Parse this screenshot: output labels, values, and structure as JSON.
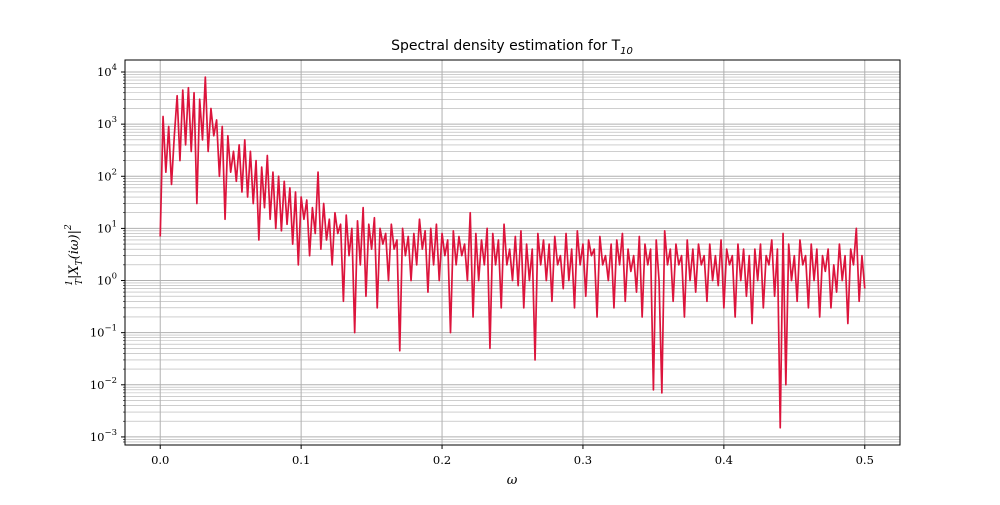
{
  "chart_data": {
    "type": "line",
    "title": "Spectral density estimation for T",
    "title_subscript": "10",
    "xlabel": "ω",
    "ylabel": "(1/T)|X_T(iω)|²",
    "ylabel_parts": {
      "num": "1",
      "den": "T",
      "body": "|X",
      "sub": "T",
      "arg": "(iω)|",
      "sup": "2"
    },
    "xscale": "linear",
    "yscale": "log",
    "xlim": [
      -0.025,
      0.525
    ],
    "ylim": [
      0.0007,
      17000
    ],
    "grid": "major and minor",
    "x_ticks": [
      {
        "value": 0.0,
        "label": "0.0"
      },
      {
        "value": 0.1,
        "label": "0.1"
      },
      {
        "value": 0.2,
        "label": "0.2"
      },
      {
        "value": 0.3,
        "label": "0.3"
      },
      {
        "value": 0.4,
        "label": "0.4"
      },
      {
        "value": 0.5,
        "label": "0.5"
      }
    ],
    "y_ticks": [
      {
        "value": 0.001,
        "base": "10",
        "exp": "−3"
      },
      {
        "value": 0.01,
        "base": "10",
        "exp": "−2"
      },
      {
        "value": 0.1,
        "base": "10",
        "exp": "−1"
      },
      {
        "value": 1,
        "base": "10",
        "exp": "0"
      },
      {
        "value": 10,
        "base": "10",
        "exp": "1"
      },
      {
        "value": 100,
        "base": "10",
        "exp": "2"
      },
      {
        "value": 1000,
        "base": "10",
        "exp": "3"
      },
      {
        "value": 10000,
        "base": "10",
        "exp": "4"
      }
    ],
    "colors": {
      "line": "#dc143c",
      "grid": "#b0b0b0",
      "axes": "#000000"
    },
    "series": [
      {
        "x": [
          0.0,
          0.002,
          0.004,
          0.006,
          0.008,
          0.01,
          0.012,
          0.014,
          0.016,
          0.018,
          0.02,
          0.022,
          0.024,
          0.026,
          0.028,
          0.03,
          0.032,
          0.034,
          0.036,
          0.038,
          0.04,
          0.042,
          0.044,
          0.046,
          0.048,
          0.05,
          0.052,
          0.054,
          0.056,
          0.058,
          0.06,
          0.062,
          0.064,
          0.066,
          0.068,
          0.07,
          0.072,
          0.074,
          0.076,
          0.078,
          0.08,
          0.082,
          0.084,
          0.086,
          0.088,
          0.09,
          0.092,
          0.094,
          0.096,
          0.098,
          0.1,
          0.102,
          0.104,
          0.106,
          0.108,
          0.11,
          0.112,
          0.114,
          0.116,
          0.118,
          0.12,
          0.122,
          0.124,
          0.126,
          0.128,
          0.13,
          0.132,
          0.134,
          0.136,
          0.138,
          0.14,
          0.142,
          0.144,
          0.146,
          0.148,
          0.15,
          0.152,
          0.154,
          0.156,
          0.158,
          0.16,
          0.162,
          0.164,
          0.166,
          0.168,
          0.17,
          0.172,
          0.174,
          0.176,
          0.178,
          0.18,
          0.182,
          0.184,
          0.186,
          0.188,
          0.19,
          0.192,
          0.194,
          0.196,
          0.198,
          0.2,
          0.202,
          0.204,
          0.206,
          0.208,
          0.21,
          0.212,
          0.214,
          0.216,
          0.218,
          0.22,
          0.222,
          0.224,
          0.226,
          0.228,
          0.23,
          0.232,
          0.234,
          0.236,
          0.238,
          0.24,
          0.242,
          0.244,
          0.246,
          0.248,
          0.25,
          0.252,
          0.254,
          0.256,
          0.258,
          0.26,
          0.262,
          0.264,
          0.266,
          0.268,
          0.27,
          0.272,
          0.274,
          0.276,
          0.278,
          0.28,
          0.282,
          0.284,
          0.286,
          0.288,
          0.29,
          0.292,
          0.294,
          0.296,
          0.298,
          0.3,
          0.302,
          0.304,
          0.306,
          0.308,
          0.31,
          0.312,
          0.314,
          0.316,
          0.318,
          0.32,
          0.322,
          0.324,
          0.326,
          0.328,
          0.33,
          0.332,
          0.334,
          0.336,
          0.338,
          0.34,
          0.342,
          0.344,
          0.346,
          0.348,
          0.35,
          0.352,
          0.354,
          0.356,
          0.358,
          0.36,
          0.362,
          0.364,
          0.366,
          0.368,
          0.37,
          0.372,
          0.374,
          0.376,
          0.378,
          0.38,
          0.382,
          0.384,
          0.386,
          0.388,
          0.39,
          0.392,
          0.394,
          0.396,
          0.398,
          0.4,
          0.402,
          0.404,
          0.406,
          0.408,
          0.41,
          0.412,
          0.414,
          0.416,
          0.418,
          0.42,
          0.422,
          0.424,
          0.426,
          0.428,
          0.43,
          0.432,
          0.434,
          0.436,
          0.438,
          0.44,
          0.442,
          0.444,
          0.446,
          0.448,
          0.45,
          0.452,
          0.454,
          0.456,
          0.458,
          0.46,
          0.462,
          0.464,
          0.466,
          0.468,
          0.47,
          0.472,
          0.474,
          0.476,
          0.478,
          0.48,
          0.482,
          0.484,
          0.486,
          0.488,
          0.49,
          0.492,
          0.494,
          0.496,
          0.498,
          0.5
        ],
        "y": [
          7,
          1400,
          120,
          900,
          70,
          600,
          3500,
          200,
          4500,
          400,
          5000,
          300,
          4000,
          30,
          3000,
          500,
          8000,
          300,
          2000,
          600,
          1200,
          100,
          900,
          15,
          600,
          120,
          300,
          80,
          400,
          50,
          500,
          40,
          300,
          30,
          200,
          6,
          150,
          25,
          250,
          15,
          120,
          10,
          100,
          9,
          80,
          12,
          60,
          5,
          50,
          2,
          40,
          15,
          35,
          3,
          25,
          8,
          120,
          4,
          30,
          6,
          15,
          2,
          20,
          8,
          12,
          0.4,
          18,
          3,
          10,
          0.1,
          14,
          2,
          25,
          0.5,
          12,
          4,
          16,
          0.3,
          10,
          5,
          8,
          1,
          12,
          4,
          6,
          0.045,
          10,
          3,
          7,
          1,
          8,
          2,
          15,
          4,
          9,
          0.6,
          10,
          2,
          12,
          1,
          8,
          3,
          6,
          0.1,
          9,
          2,
          7,
          3,
          5,
          1,
          20,
          0.2,
          8,
          1,
          6,
          2,
          10,
          0.05,
          8,
          2,
          6,
          0.3,
          12,
          2,
          4,
          1,
          7,
          0.8,
          9,
          0.3,
          5,
          1,
          4,
          0.03,
          8,
          2,
          6,
          1,
          5,
          0.4,
          7,
          2,
          3,
          0.7,
          8,
          1,
          4,
          0.3,
          9,
          2,
          5,
          0.5,
          6,
          3,
          4,
          0.2,
          7,
          2,
          3,
          1,
          5,
          0.3,
          6,
          2,
          8,
          0.4,
          4,
          1.5,
          3,
          0.6,
          7,
          0.2,
          5,
          2,
          4,
          0.008,
          6,
          1,
          0.007,
          9,
          2,
          4,
          0.4,
          5,
          2,
          3,
          0.2,
          6,
          1,
          4,
          0.6,
          5,
          2,
          3,
          0.4,
          5,
          1,
          3,
          0.8,
          6,
          0.3,
          4,
          2,
          3,
          0.2,
          5,
          1,
          4,
          0.5,
          3,
          0.15,
          4,
          1,
          5,
          0.3,
          3,
          2,
          6,
          0.5,
          4,
          0.0015,
          8,
          0.01,
          5,
          1,
          3,
          0.4,
          6,
          2,
          3,
          0.3,
          5,
          1,
          4,
          0.2,
          3,
          1.5,
          4,
          0.3,
          2,
          0.6,
          5,
          1,
          3,
          0.15,
          4,
          2,
          10,
          0.4,
          3,
          0.7
        ]
      }
    ]
  }
}
